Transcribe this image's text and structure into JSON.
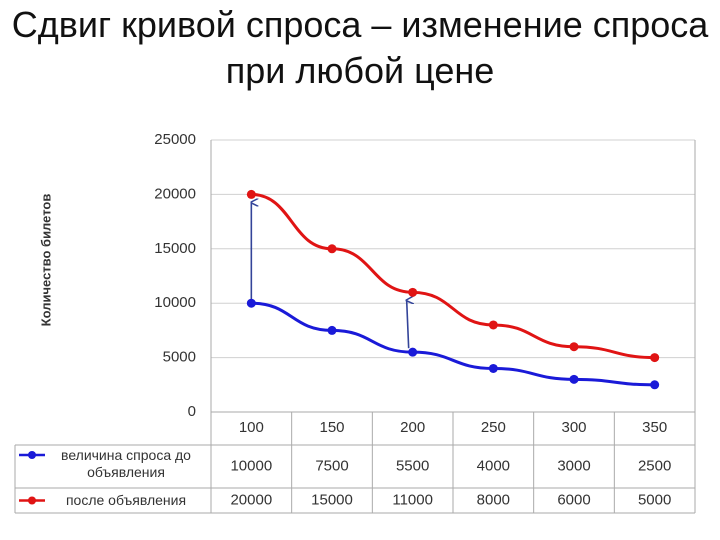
{
  "chart_data": {
    "type": "line",
    "title": "Сдвиг кривой спроса – изменение спроса при любой цене",
    "y_label": "Количество билетов",
    "categories": [
      "100",
      "150",
      "200",
      "250",
      "300",
      "350"
    ],
    "series": [
      {
        "name": "величина спроса до объявления",
        "color": "#1a1ad8",
        "values": [
          10000,
          7500,
          5500,
          4000,
          3000,
          2500
        ]
      },
      {
        "name": "после объявления",
        "color": "#e01414",
        "values": [
          20000,
          15000,
          11000,
          8000,
          6000,
          5000
        ]
      }
    ],
    "ylim": [
      0,
      25000
    ],
    "yticks": [
      0,
      5000,
      10000,
      15000,
      20000,
      25000
    ],
    "grid": true
  }
}
